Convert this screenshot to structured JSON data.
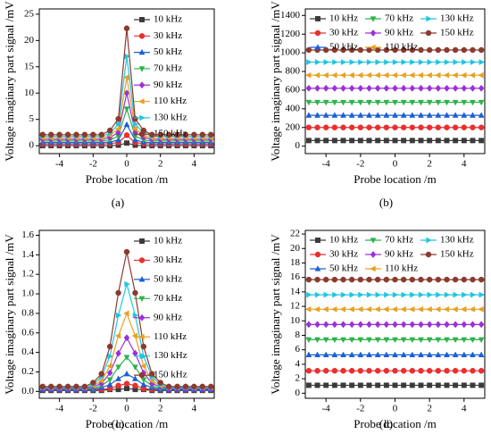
{
  "chart_data": [
    {
      "type": "line",
      "caption": "(a)",
      "x_label": "Probe location /m",
      "y_label": "Voltage imaginary part signal /mV",
      "legend": "right",
      "xlim": [
        -5.2,
        5.2
      ],
      "xticks": [
        -4,
        -2,
        0,
        2,
        4
      ],
      "ylim": [
        -1.5,
        26
      ],
      "yticks": [
        0,
        5,
        10,
        15,
        20,
        25
      ],
      "x": [
        -5,
        -4.5,
        -4,
        -3.5,
        -3,
        -2.5,
        -2,
        -1.5,
        -1,
        -0.5,
        0,
        0.5,
        1,
        1.5,
        2,
        2.5,
        3,
        3.5,
        4,
        4.5,
        5
      ],
      "series": [
        {
          "name": "10 kHz",
          "color": "#3a3a3a",
          "marker": "square",
          "values": [
            0,
            0,
            0,
            0,
            0,
            0,
            0,
            0,
            0,
            0.1,
            0.5,
            0.1,
            0,
            0,
            0,
            0,
            0,
            0,
            0,
            0,
            0
          ]
        },
        {
          "name": "30 kHz",
          "color": "#e8302f",
          "marker": "circle",
          "values": [
            0.3,
            0.3,
            0.3,
            0.3,
            0.3,
            0.3,
            0.3,
            0.3,
            0.4,
            0.6,
            2,
            0.6,
            0.4,
            0.3,
            0.3,
            0.3,
            0.3,
            0.3,
            0.3,
            0.3,
            0.3
          ]
        },
        {
          "name": "50 kHz",
          "color": "#1a5fd6",
          "marker": "triangle-up",
          "values": [
            0.6,
            0.6,
            0.6,
            0.6,
            0.6,
            0.6,
            0.6,
            0.6,
            0.7,
            1.1,
            4,
            1.1,
            0.7,
            0.6,
            0.6,
            0.6,
            0.6,
            0.6,
            0.6,
            0.6,
            0.6
          ]
        },
        {
          "name": "70 kHz",
          "color": "#2cb34a",
          "marker": "triangle-down",
          "values": [
            0.9,
            0.9,
            0.9,
            0.9,
            0.9,
            0.9,
            0.9,
            0.9,
            1.1,
            1.8,
            7,
            1.8,
            1.1,
            0.9,
            0.9,
            0.9,
            0.9,
            0.9,
            0.9,
            0.9,
            0.9
          ]
        },
        {
          "name": "90 kHz",
          "color": "#9b30d9",
          "marker": "diamond",
          "values": [
            1.2,
            1.2,
            1.2,
            1.2,
            1.2,
            1.2,
            1.2,
            1.2,
            1.6,
            2.5,
            10,
            2.5,
            1.6,
            1.2,
            1.2,
            1.2,
            1.2,
            1.2,
            1.2,
            1.2,
            1.2
          ]
        },
        {
          "name": "110 kHz",
          "color": "#e8a020",
          "marker": "triangle-left",
          "values": [
            1.5,
            1.5,
            1.5,
            1.5,
            1.5,
            1.5,
            1.5,
            1.5,
            2,
            3.2,
            13,
            3.2,
            2,
            1.5,
            1.5,
            1.5,
            1.5,
            1.5,
            1.5,
            1.5,
            1.5
          ]
        },
        {
          "name": "130 kHz",
          "color": "#20c5e0",
          "marker": "triangle-right",
          "values": [
            1.8,
            1.8,
            1.8,
            1.8,
            1.8,
            1.8,
            1.8,
            1.8,
            2.4,
            4.1,
            17,
            4.1,
            2.4,
            1.8,
            1.8,
            1.8,
            1.8,
            1.8,
            1.8,
            1.8,
            1.8
          ]
        },
        {
          "name": "150 kHz",
          "color": "#8b3a2f",
          "marker": "circle",
          "values": [
            2.1,
            2.1,
            2.1,
            2.1,
            2.1,
            2.1,
            2.1,
            2.1,
            2.9,
            5.1,
            22.3,
            5.1,
            2.9,
            2.1,
            2.1,
            2.1,
            2.1,
            2.1,
            2.1,
            2.1,
            2.1
          ]
        }
      ]
    },
    {
      "type": "line",
      "caption": "(b)",
      "x_label": "Probe location /m",
      "y_label": "Voltage imaginary part signal /mV",
      "legend": "top",
      "xlim": [
        -5.2,
        5.2
      ],
      "xticks": [
        -4,
        -2,
        0,
        2,
        4
      ],
      "ylim": [
        -80,
        1470
      ],
      "yticks": [
        0,
        200,
        400,
        600,
        800,
        1000,
        1200,
        1400
      ],
      "x": [
        -5,
        -4.5,
        -4,
        -3.5,
        -3,
        -2.5,
        -2,
        -1.5,
        -1,
        -0.5,
        0,
        0.5,
        1,
        1.5,
        2,
        2.5,
        3,
        3.5,
        4,
        4.5,
        5
      ],
      "series": [
        {
          "name": "10 kHz",
          "color": "#3a3a3a",
          "marker": "square",
          "values": [
            60,
            60,
            60,
            60,
            60,
            60,
            60,
            60,
            60,
            60,
            60,
            60,
            60,
            60,
            60,
            60,
            60,
            60,
            60,
            60,
            60
          ]
        },
        {
          "name": "30 kHz",
          "color": "#e8302f",
          "marker": "circle",
          "values": [
            200,
            200,
            200,
            200,
            200,
            200,
            200,
            200,
            200,
            200,
            200,
            200,
            200,
            200,
            200,
            200,
            200,
            200,
            200,
            200,
            200
          ]
        },
        {
          "name": "50 kHz",
          "color": "#1a5fd6",
          "marker": "triangle-up",
          "values": [
            330,
            330,
            330,
            330,
            330,
            330,
            330,
            330,
            330,
            330,
            330,
            330,
            330,
            330,
            330,
            330,
            330,
            330,
            330,
            330,
            330
          ]
        },
        {
          "name": "70 kHz",
          "color": "#2cb34a",
          "marker": "triangle-down",
          "values": [
            470,
            470,
            470,
            470,
            470,
            470,
            470,
            470,
            470,
            470,
            470,
            470,
            470,
            470,
            470,
            470,
            470,
            470,
            470,
            470,
            470
          ]
        },
        {
          "name": "90 kHz",
          "color": "#9b30d9",
          "marker": "diamond",
          "values": [
            620,
            620,
            620,
            620,
            620,
            620,
            620,
            620,
            620,
            620,
            620,
            620,
            620,
            620,
            620,
            620,
            620,
            620,
            620,
            620,
            620
          ]
        },
        {
          "name": "110 kHz",
          "color": "#e8a020",
          "marker": "triangle-left",
          "values": [
            760,
            760,
            760,
            760,
            760,
            760,
            760,
            760,
            760,
            760,
            760,
            760,
            760,
            760,
            760,
            760,
            760,
            760,
            760,
            760,
            760
          ]
        },
        {
          "name": "130 kHz",
          "color": "#20c5e0",
          "marker": "triangle-right",
          "values": [
            900,
            900,
            900,
            900,
            900,
            900,
            900,
            900,
            900,
            900,
            900,
            900,
            900,
            900,
            900,
            900,
            900,
            900,
            900,
            900,
            900
          ]
        },
        {
          "name": "150 kHz",
          "color": "#8b3a2f",
          "marker": "circle",
          "values": [
            1030,
            1030,
            1030,
            1030,
            1030,
            1030,
            1030,
            1030,
            1030,
            1030,
            1030,
            1030,
            1030,
            1030,
            1030,
            1030,
            1030,
            1030,
            1030,
            1030,
            1030
          ]
        }
      ]
    },
    {
      "type": "line",
      "caption": "(c)",
      "x_label": "Probe location /m",
      "y_label": "Voltage imaginary part signal /mV",
      "legend": "right",
      "xlim": [
        -5.2,
        5.2
      ],
      "xticks": [
        -4,
        -2,
        0,
        2,
        4
      ],
      "ylim": [
        -0.07,
        1.65
      ],
      "yticks": [
        {
          "value": 0,
          "label": "0.0"
        },
        0.2,
        0.4,
        0.6,
        0.8,
        {
          "value": 1,
          "label": "1.0"
        },
        1.2,
        1.4,
        1.6
      ],
      "x": [
        -5,
        -4.5,
        -4,
        -3.5,
        -3,
        -2.5,
        -2,
        -1.5,
        -1,
        -0.5,
        0,
        0.5,
        1,
        1.5,
        2,
        2.5,
        3,
        3.5,
        4,
        4.5,
        5
      ],
      "series": [
        {
          "name": "10 kHz",
          "color": "#3a3a3a",
          "marker": "square",
          "values": [
            0.01,
            0.01,
            0.01,
            0.01,
            0.01,
            0.01,
            0.01,
            0.01,
            0.02,
            0.02,
            0.03,
            0.02,
            0.02,
            0.01,
            0.01,
            0.01,
            0.01,
            0.01,
            0.01,
            0.01,
            0.01
          ]
        },
        {
          "name": "30 kHz",
          "color": "#e8302f",
          "marker": "circle",
          "values": [
            0.02,
            0.02,
            0.02,
            0.02,
            0.02,
            0.02,
            0.02,
            0.02,
            0.03,
            0.06,
            0.08,
            0.06,
            0.03,
            0.02,
            0.02,
            0.02,
            0.02,
            0.02,
            0.02,
            0.02,
            0.02
          ]
        },
        {
          "name": "50 kHz",
          "color": "#1a5fd6",
          "marker": "triangle-up",
          "values": [
            0.02,
            0.02,
            0.02,
            0.02,
            0.02,
            0.02,
            0.02,
            0.04,
            0.07,
            0.13,
            0.18,
            0.13,
            0.07,
            0.04,
            0.02,
            0.02,
            0.02,
            0.02,
            0.02,
            0.02,
            0.02
          ]
        },
        {
          "name": "70 kHz",
          "color": "#2cb34a",
          "marker": "triangle-down",
          "values": [
            0.03,
            0.03,
            0.03,
            0.03,
            0.03,
            0.03,
            0.03,
            0.06,
            0.12,
            0.25,
            0.35,
            0.25,
            0.12,
            0.06,
            0.03,
            0.03,
            0.03,
            0.03,
            0.03,
            0.03,
            0.03
          ]
        },
        {
          "name": "90 kHz",
          "color": "#9b30d9",
          "marker": "diamond",
          "values": [
            0.03,
            0.03,
            0.03,
            0.03,
            0.03,
            0.03,
            0.05,
            0.08,
            0.19,
            0.39,
            0.55,
            0.39,
            0.19,
            0.08,
            0.05,
            0.03,
            0.03,
            0.03,
            0.03,
            0.03,
            0.03
          ]
        },
        {
          "name": "110 kHz",
          "color": "#e8a020",
          "marker": "triangle-left",
          "values": [
            0.04,
            0.04,
            0.04,
            0.04,
            0.04,
            0.04,
            0.06,
            0.11,
            0.26,
            0.57,
            0.8,
            0.57,
            0.26,
            0.11,
            0.06,
            0.04,
            0.04,
            0.04,
            0.04,
            0.04,
            0.04
          ]
        },
        {
          "name": "130 kHz",
          "color": "#20c5e0",
          "marker": "triangle-right",
          "values": [
            0.04,
            0.04,
            0.04,
            0.04,
            0.04,
            0.04,
            0.07,
            0.15,
            0.36,
            0.78,
            1.1,
            0.78,
            0.36,
            0.15,
            0.07,
            0.04,
            0.04,
            0.04,
            0.04,
            0.04,
            0.04
          ]
        },
        {
          "name": "150 kHz",
          "color": "#8b3a2f",
          "marker": "circle",
          "values": [
            0.05,
            0.05,
            0.05,
            0.05,
            0.05,
            0.05,
            0.09,
            0.18,
            0.46,
            1.01,
            1.43,
            1.01,
            0.46,
            0.18,
            0.09,
            0.05,
            0.05,
            0.05,
            0.05,
            0.05,
            0.05
          ]
        }
      ]
    },
    {
      "type": "line",
      "caption": "(d)",
      "x_label": "Probe location /m",
      "y_label": "Voltage imaginary part signal /mV",
      "legend": "top",
      "xlim": [
        -5.2,
        5.2
      ],
      "xticks": [
        -4,
        -2,
        0,
        2,
        4
      ],
      "ylim": [
        -0.7,
        22.5
      ],
      "yticks": [
        0,
        2,
        4,
        6,
        8,
        10,
        12,
        14,
        16,
        18,
        20,
        22
      ],
      "x": [
        -5,
        -4.5,
        -4,
        -3.5,
        -3,
        -2.5,
        -2,
        -1.5,
        -1,
        -0.5,
        0,
        0.5,
        1,
        1.5,
        2,
        2.5,
        3,
        3.5,
        4,
        4.5,
        5
      ],
      "series": [
        {
          "name": "10 kHz",
          "color": "#3a3a3a",
          "marker": "square",
          "values": [
            1.1,
            1.1,
            1.1,
            1.1,
            1.1,
            1.1,
            1.1,
            1.1,
            1.1,
            1.1,
            1.1,
            1.1,
            1.1,
            1.1,
            1.1,
            1.1,
            1.1,
            1.1,
            1.1,
            1.1,
            1.1
          ]
        },
        {
          "name": "30 kHz",
          "color": "#e8302f",
          "marker": "circle",
          "values": [
            3.1,
            3.1,
            3.1,
            3.1,
            3.1,
            3.1,
            3.1,
            3.1,
            3.1,
            3.1,
            3.1,
            3.1,
            3.1,
            3.1,
            3.1,
            3.1,
            3.1,
            3.1,
            3.1,
            3.1,
            3.1
          ]
        },
        {
          "name": "50 kHz",
          "color": "#1a5fd6",
          "marker": "triangle-up",
          "values": [
            5.3,
            5.3,
            5.3,
            5.3,
            5.3,
            5.3,
            5.3,
            5.3,
            5.3,
            5.3,
            5.3,
            5.3,
            5.3,
            5.3,
            5.3,
            5.3,
            5.3,
            5.3,
            5.3,
            5.3,
            5.3
          ]
        },
        {
          "name": "70 kHz",
          "color": "#2cb34a",
          "marker": "triangle-down",
          "values": [
            7.4,
            7.4,
            7.4,
            7.4,
            7.4,
            7.4,
            7.4,
            7.4,
            7.4,
            7.4,
            7.4,
            7.4,
            7.4,
            7.4,
            7.4,
            7.4,
            7.4,
            7.4,
            7.4,
            7.4,
            7.4
          ]
        },
        {
          "name": "90 kHz",
          "color": "#9b30d9",
          "marker": "diamond",
          "values": [
            9.5,
            9.5,
            9.5,
            9.5,
            9.5,
            9.5,
            9.5,
            9.5,
            9.5,
            9.5,
            9.5,
            9.5,
            9.5,
            9.5,
            9.5,
            9.5,
            9.5,
            9.5,
            9.5,
            9.5,
            9.5
          ]
        },
        {
          "name": "110 kHz",
          "color": "#e8a020",
          "marker": "triangle-left",
          "values": [
            11.6,
            11.6,
            11.6,
            11.6,
            11.6,
            11.6,
            11.6,
            11.6,
            11.6,
            11.6,
            11.6,
            11.6,
            11.6,
            11.6,
            11.6,
            11.6,
            11.6,
            11.6,
            11.6,
            11.6,
            11.6
          ]
        },
        {
          "name": "130 kHz",
          "color": "#20c5e0",
          "marker": "triangle-right",
          "values": [
            13.6,
            13.6,
            13.6,
            13.6,
            13.6,
            13.6,
            13.6,
            13.6,
            13.6,
            13.6,
            13.6,
            13.6,
            13.6,
            13.6,
            13.6,
            13.6,
            13.6,
            13.6,
            13.6,
            13.6,
            13.6
          ]
        },
        {
          "name": "150 kHz",
          "color": "#8b3a2f",
          "marker": "circle",
          "values": [
            15.7,
            15.7,
            15.7,
            15.7,
            15.7,
            15.7,
            15.7,
            15.7,
            15.7,
            15.7,
            15.7,
            15.7,
            15.7,
            15.7,
            15.7,
            15.7,
            15.7,
            15.7,
            15.7,
            15.7,
            15.7
          ]
        }
      ]
    }
  ]
}
